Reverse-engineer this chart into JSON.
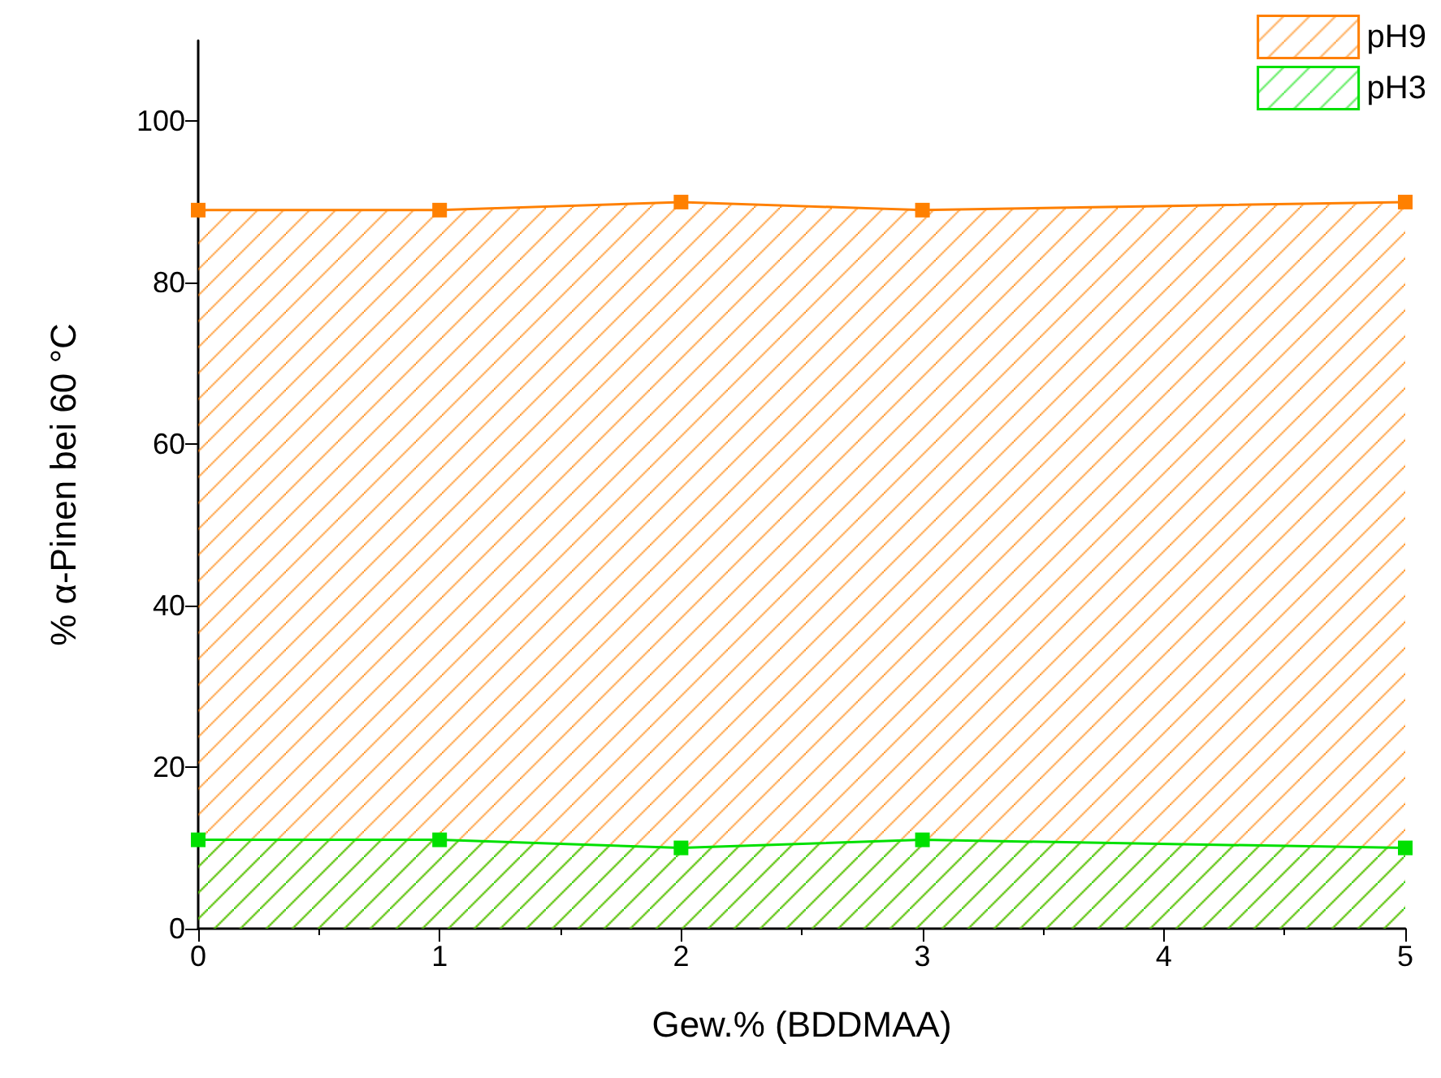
{
  "chart_data": {
    "type": "area",
    "xlabel": "Gew.% (BDDMAA)",
    "ylabel": "% α-Pinen bei 60 °C",
    "x": [
      0,
      1,
      2,
      3,
      5
    ],
    "series": [
      {
        "name": "pH9",
        "color": "#ff8000",
        "values": [
          89,
          89,
          90,
          89,
          90
        ]
      },
      {
        "name": "pH3",
        "color": "#00e000",
        "values": [
          11,
          11,
          10,
          11,
          10
        ]
      }
    ],
    "xlim": [
      0,
      5
    ],
    "xticks": [
      0,
      1,
      2,
      3,
      4,
      5
    ],
    "ylim": [
      0,
      110
    ],
    "yticks": [
      0,
      20,
      40,
      60,
      80,
      100
    ],
    "grid": false,
    "legend": "top right",
    "marker": "square",
    "line_style": "solid"
  }
}
